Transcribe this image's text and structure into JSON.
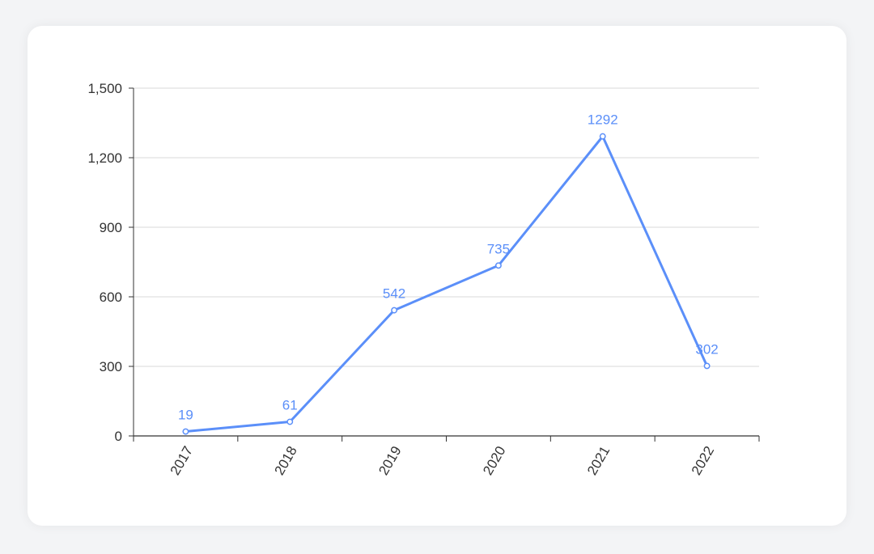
{
  "chart_data": {
    "type": "line",
    "categories": [
      "2017",
      "2018",
      "2019",
      "2020",
      "2021",
      "2022"
    ],
    "series": [
      {
        "values": [
          19,
          61,
          542,
          735,
          1292,
          302
        ]
      }
    ],
    "data_labels": [
      "19",
      "61",
      "542",
      "735",
      "1292",
      "302"
    ],
    "ylim": [
      0,
      1500
    ],
    "y_ticks": [
      0,
      300,
      600,
      900,
      1200,
      1500
    ],
    "y_tick_labels": [
      "0",
      "300",
      "600",
      "900",
      "1,200",
      "1,500"
    ],
    "grid": true,
    "legend": "none"
  },
  "colors": {
    "line": "#5b8ff9",
    "label": "#5b8ff9",
    "grid": "#d9d9d9",
    "axis": "#333333"
  }
}
